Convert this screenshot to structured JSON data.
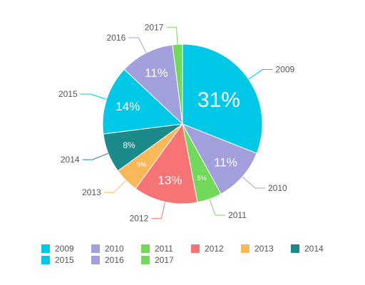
{
  "chart_data": {
    "type": "pie",
    "slices": [
      {
        "label": "2009",
        "value": 31,
        "data_label": "31%",
        "color": "#00c8e6"
      },
      {
        "label": "2010",
        "value": 11,
        "data_label": "11%",
        "color": "#a19fdc"
      },
      {
        "label": "2011",
        "value": 5,
        "data_label": "5%",
        "color": "#73d95b"
      },
      {
        "label": "2012",
        "value": 13,
        "data_label": "13%",
        "color": "#f67474"
      },
      {
        "label": "2013",
        "value": 5,
        "data_label": "5%",
        "color": "#f9b85a"
      },
      {
        "label": "2014",
        "value": 8,
        "data_label": "8%",
        "color": "#1a8a8a"
      },
      {
        "label": "2015",
        "value": 14,
        "data_label": "14%",
        "color": "#00c8e6"
      },
      {
        "label": "2016",
        "value": 11,
        "data_label": "11%",
        "color": "#a19fdc"
      },
      {
        "label": "2017",
        "value": 2,
        "data_label": "",
        "color": "#73d95b"
      }
    ],
    "legend": {
      "position": "bottom",
      "items": [
        {
          "label": "2009",
          "color": "#00c8e6"
        },
        {
          "label": "2010",
          "color": "#a19fdc"
        },
        {
          "label": "2011",
          "color": "#73d95b"
        },
        {
          "label": "2012",
          "color": "#f67474"
        },
        {
          "label": "2013",
          "color": "#f9b85a"
        },
        {
          "label": "2014",
          "color": "#1a8a8a"
        },
        {
          "label": "2015",
          "color": "#00c8e6"
        },
        {
          "label": "2016",
          "color": "#a19fdc"
        },
        {
          "label": "2017",
          "color": "#73d95b"
        }
      ]
    },
    "start_angle": "top",
    "direction": "clockwise"
  }
}
